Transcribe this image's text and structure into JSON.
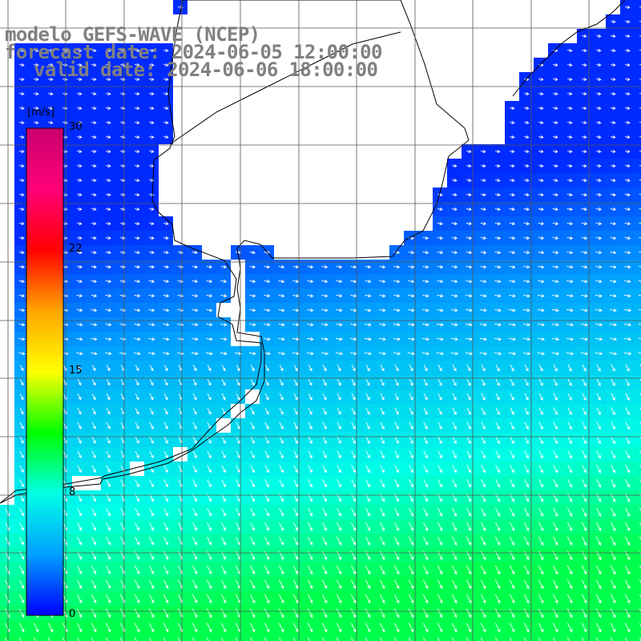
{
  "title": {
    "line1": "modelo GEFS-WAVE (NCEP)",
    "line2": "forecast date: 2024-06-05 12:00:00",
    "line3": "valid date: 2024-06-06 18:00:00",
    "color": "#808080"
  },
  "colorbar": {
    "unit_label": "[m/s]",
    "tick_labels": [
      "30",
      "22",
      "15",
      "8",
      "0"
    ],
    "tick_values": [
      30,
      22,
      15,
      8,
      0
    ],
    "range": [
      0,
      30
    ],
    "gradient_colors": [
      "#0000ff",
      "#00a0ff",
      "#00ffe6",
      "#00ff00",
      "#ffff00",
      "#ffa500",
      "#ff0000",
      "#ff0078",
      "#c8006e"
    ]
  },
  "map": {
    "variable": "wind speed",
    "land_color": "#ffffff",
    "ocean_color": "#1e3cff",
    "arrow_color": "#ffffff",
    "grid_color": "#555555",
    "coastline_color": "#000000",
    "speed_range_on_map_m_s": [
      1,
      10
    ]
  }
}
